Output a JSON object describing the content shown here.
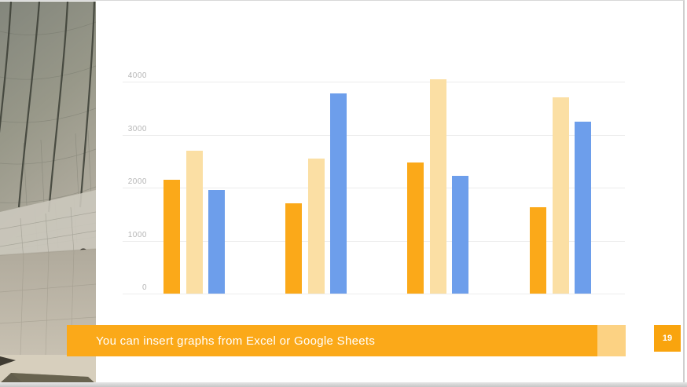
{
  "slide": {
    "banner": {
      "text": "You can insert graphs from Excel or Google Sheets"
    },
    "page_number": "19",
    "colors": {
      "banner_bg": "#FBA919",
      "banner_accent": "#FCD283",
      "badge_bg": "#F9A40E",
      "gridline": "#ECECEC",
      "tick_text": "#B5B5B5"
    },
    "photo": {
      "description": "grayscale curved architecture facade with grid panels, concrete wall, two people"
    }
  },
  "chart_data": {
    "type": "bar",
    "title": "",
    "xlabel": "",
    "ylabel": "",
    "categories": [
      "",
      "",
      "",
      ""
    ],
    "series": [
      {
        "name": "orange",
        "color": "#FBA919",
        "values": [
          2150,
          1700,
          2475,
          1625
        ]
      },
      {
        "name": "cream",
        "color": "#FBDFA4",
        "values": [
          2700,
          2550,
          4050,
          3700
        ]
      },
      {
        "name": "blue",
        "color": "#6D9EEB",
        "values": [
          1950,
          3775,
          2225,
          3250
        ]
      }
    ],
    "ylim": [
      0,
      4000
    ],
    "yticks": [
      0,
      1000,
      2000,
      3000,
      4000
    ],
    "grid": true,
    "legend": "none",
    "category_labels_visible": false
  }
}
